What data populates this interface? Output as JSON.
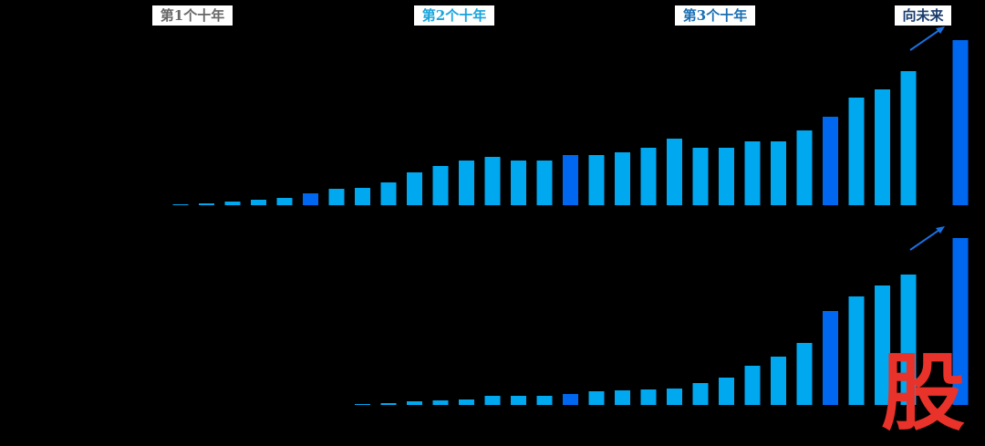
{
  "chart_data": [
    {
      "type": "bar",
      "annotations": [
        "第1个十年",
        "第2个十年",
        "第3个十年",
        "向未来"
      ],
      "categories": [
        null,
        null,
        null,
        null,
        null,
        null,
        null,
        null,
        null,
        null,
        null,
        null,
        null,
        null,
        null,
        null,
        null,
        null,
        null,
        null,
        null,
        null,
        null,
        null,
        null,
        null,
        null,
        null,
        null,
        null,
        null
      ],
      "values": [
        1,
        2,
        4,
        6,
        8,
        13,
        18,
        19,
        25,
        36,
        43,
        49,
        53,
        49,
        49,
        55,
        55,
        58,
        63,
        73,
        63,
        63,
        70,
        70,
        82,
        97,
        118,
        127,
        147,
        null,
        181
      ],
      "colors": [
        "#00a8f0",
        "#00a8f0",
        "#00a8f0",
        "#00a8f0",
        "#00a8f0",
        "#0068f0",
        "#00a8f0",
        "#00a8f0",
        "#00a8f0",
        "#00a8f0",
        "#00a8f0",
        "#00a8f0",
        "#00a8f0",
        "#00a8f0",
        "#00a8f0",
        "#0068f0",
        "#00a8f0",
        "#00a8f0",
        "#00a8f0",
        "#00a8f0",
        "#00a8f0",
        "#00a8f0",
        "#00a8f0",
        "#00a8f0",
        "#00a8f0",
        "#0068f0",
        "#00a8f0",
        "#00a8f0",
        "#00a8f0",
        "#00a8f0",
        "#0068f0"
      ],
      "ylim": [
        0,
        190
      ]
    },
    {
      "type": "bar",
      "categories": [
        null,
        null,
        null,
        null,
        null,
        null,
        null,
        null,
        null,
        null,
        null,
        null,
        null,
        null,
        null,
        null,
        null,
        null,
        null,
        null,
        null,
        null,
        null,
        null,
        null,
        null,
        null,
        null,
        null,
        null,
        null
      ],
      "values": [
        null,
        null,
        null,
        null,
        null,
        null,
        null,
        1,
        2,
        4,
        5,
        6,
        10,
        10,
        10,
        12,
        15,
        16,
        17,
        18,
        24,
        30,
        43,
        53,
        68,
        103,
        119,
        131,
        143,
        null,
        183
      ],
      "colors": [
        "#00a8f0",
        "#00a8f0",
        "#00a8f0",
        "#00a8f0",
        "#00a8f0",
        "#0068f0",
        "#00a8f0",
        "#00a8f0",
        "#00a8f0",
        "#00a8f0",
        "#00a8f0",
        "#00a8f0",
        "#00a8f0",
        "#00a8f0",
        "#00a8f0",
        "#0068f0",
        "#00a8f0",
        "#00a8f0",
        "#00a8f0",
        "#00a8f0",
        "#00a8f0",
        "#00a8f0",
        "#00a8f0",
        "#00a8f0",
        "#00a8f0",
        "#0068f0",
        "#00a8f0",
        "#00a8f0",
        "#00a8f0",
        "#00a8f0",
        "#0068f0"
      ],
      "ylim": [
        0,
        190
      ]
    }
  ],
  "watermark": "股"
}
